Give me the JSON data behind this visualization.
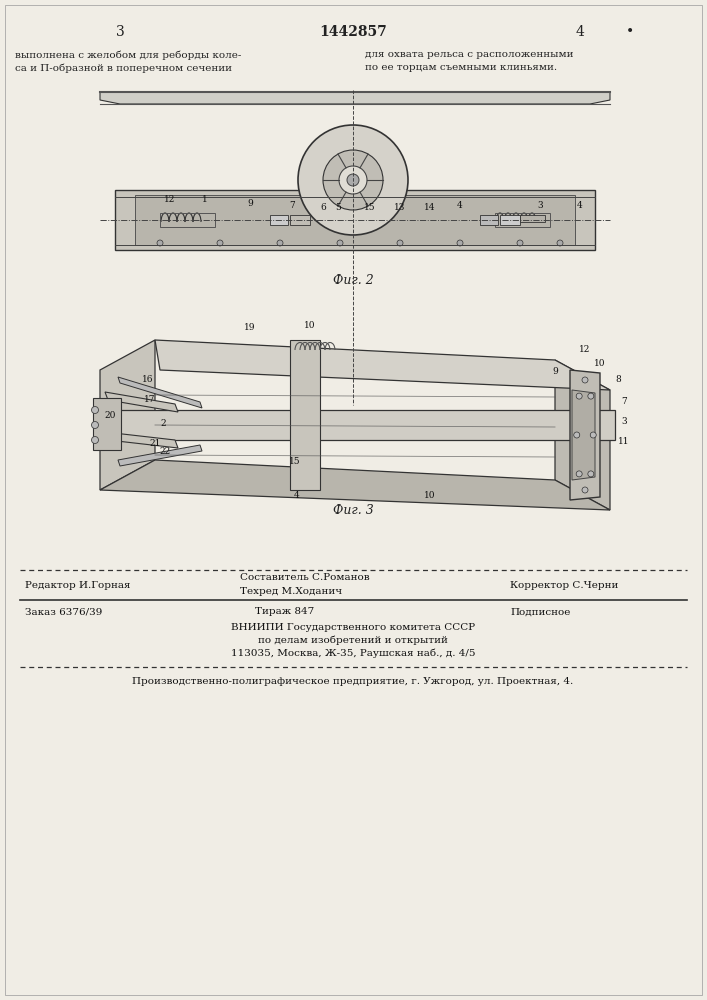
{
  "bg_color": "#f5f5f0",
  "page_color": "#f0ede5",
  "header_left_num": "3",
  "header_center": "1442857",
  "header_right_num": "4",
  "header_text_left": "выполнена с желобом для реборды коле-\nса и П-образной в поперечном сечении",
  "header_text_right": "для охвата рельса с расположенными\nпо ее торцам съемными клиньями.",
  "fig2_label": "Фиг. 2",
  "fig3_label": "Фиг. 3",
  "footer_line1_left": "Редактор И.Горная",
  "footer_line1_center1": "Составитель С.Романов",
  "footer_line1_center2": "Техред М.Хoданич",
  "footer_line1_right": "Корректор С.Черни",
  "footer_line2_left": "Заказ 6376/39",
  "footer_line2_center": "Тираж 847",
  "footer_line2_right": "Подписное",
  "footer_line3": "ВНИИПИ Государственного комитета СССР",
  "footer_line4": "по делам изобретений и открытий",
  "footer_line5": "113035, Москва, Ж-35, Раушская наб., д. 4/5",
  "footer_bottom": "Производственно-полиграфическое предприятие, г. Ужгород, ул. Проектная, 4."
}
